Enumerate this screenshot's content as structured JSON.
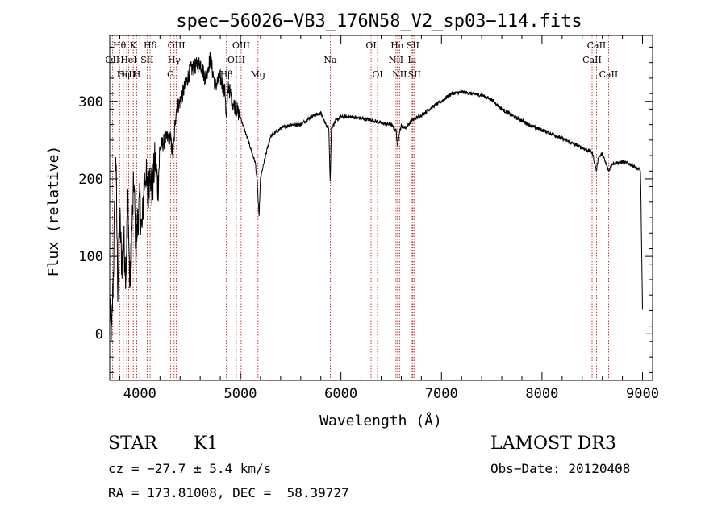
{
  "chart_data": {
    "type": "line",
    "title": "spec−56026−VB3_176N58_V2_sp03−114.fits",
    "xlabel": "Wavelength (Å)",
    "ylabel": "Flux (relative)",
    "xlim": [
      3700,
      9100
    ],
    "ylim": [
      -60,
      385
    ],
    "xticks": [
      4000,
      5000,
      6000,
      7000,
      8000,
      9000
    ],
    "yticks": [
      0,
      100,
      200,
      300
    ],
    "series": [
      {
        "name": "flux",
        "x": [
          3700,
          3720,
          3740,
          3760,
          3780,
          3800,
          3820,
          3840,
          3860,
          3880,
          3900,
          3920,
          3940,
          3960,
          3980,
          4000,
          4020,
          4040,
          4060,
          4080,
          4100,
          4120,
          4150,
          4180,
          4200,
          4250,
          4300,
          4330,
          4360,
          4400,
          4450,
          4500,
          4550,
          4600,
          4650,
          4700,
          4750,
          4800,
          4850,
          4860,
          4880,
          4920,
          4960,
          5000,
          5050,
          5100,
          5150,
          5170,
          5185,
          5200,
          5250,
          5300,
          5400,
          5500,
          5600,
          5700,
          5800,
          5850,
          5880,
          5893,
          5905,
          5950,
          6000,
          6100,
          6200,
          6300,
          6400,
          6500,
          6550,
          6563,
          6580,
          6600,
          6650,
          6700,
          6800,
          6900,
          7000,
          7100,
          7200,
          7300,
          7400,
          7500,
          7600,
          7700,
          7800,
          7900,
          8000,
          8100,
          8200,
          8300,
          8400,
          8500,
          8542,
          8560,
          8600,
          8662,
          8700,
          8800,
          8900,
          8980,
          9000
        ],
        "y": [
          30,
          0,
          100,
          240,
          60,
          150,
          90,
          120,
          80,
          180,
          60,
          130,
          200,
          110,
          150,
          170,
          130,
          190,
          210,
          170,
          220,
          180,
          225,
          190,
          240,
          250,
          255,
          230,
          290,
          300,
          320,
          340,
          345,
          350,
          330,
          355,
          320,
          330,
          310,
          275,
          320,
          300,
          290,
          280,
          260,
          240,
          220,
          190,
          150,
          200,
          230,
          255,
          265,
          270,
          270,
          280,
          285,
          270,
          265,
          195,
          265,
          275,
          280,
          280,
          278,
          276,
          272,
          270,
          262,
          240,
          260,
          268,
          266,
          275,
          282,
          292,
          300,
          310,
          312,
          310,
          308,
          302,
          290,
          282,
          275,
          268,
          263,
          258,
          252,
          246,
          240,
          234,
          210,
          228,
          232,
          210,
          220,
          222,
          218,
          210,
          30
        ]
      }
    ],
    "line_markers": [
      {
        "label": "Hθ",
        "x": 3798,
        "row": 1
      },
      {
        "label": "OII",
        "x": 3727,
        "row": 2
      },
      {
        "label": "OIII",
        "x": 3869,
        "row": 3
      },
      {
        "label": "K",
        "x": 3934,
        "row": 1
      },
      {
        "label": "HeI",
        "x": 3889,
        "row": 2
      },
      {
        "label": "Hη",
        "x": 3835,
        "row": 3
      },
      {
        "label": "SII",
        "x": 4072,
        "row": 2
      },
      {
        "label": "H",
        "x": 3969,
        "row": 3
      },
      {
        "label": "Hδ",
        "x": 4102,
        "row": 1
      },
      {
        "label": "OIII",
        "x": 4363,
        "row": 1
      },
      {
        "label": "Hγ",
        "x": 4341,
        "row": 2
      },
      {
        "label": "G",
        "x": 4305,
        "row": 3
      },
      {
        "label": "OIII",
        "x": 5007,
        "row": 1
      },
      {
        "label": "OIII",
        "x": 4959,
        "row": 2
      },
      {
        "label": "Hβ",
        "x": 4861,
        "row": 3
      },
      {
        "label": "Mg",
        "x": 5175,
        "row": 3
      },
      {
        "label": "Na",
        "x": 5894,
        "row": 2
      },
      {
        "label": "OI",
        "x": 6300,
        "row": 1
      },
      {
        "label": "OI",
        "x": 6364,
        "row": 3
      },
      {
        "label": "Hα",
        "x": 6563,
        "row": 1
      },
      {
        "label": "SII",
        "x": 6716,
        "row": 1
      },
      {
        "label": "NII",
        "x": 6548,
        "row": 2
      },
      {
        "label": "Li",
        "x": 6708,
        "row": 2
      },
      {
        "label": "NII",
        "x": 6583,
        "row": 3
      },
      {
        "label": "SII",
        "x": 6731,
        "row": 3
      },
      {
        "label": "CaII",
        "x": 8542,
        "row": 1
      },
      {
        "label": "CaII",
        "x": 8498,
        "row": 2
      },
      {
        "label": "CaII",
        "x": 8662,
        "row": 3
      }
    ]
  },
  "info": {
    "object_class": "STAR",
    "subclass": "K1",
    "survey": "LAMOST DR3",
    "cz": "cz = −27.7 ± 5.4 km/s",
    "obs_date": "Obs−Date: 20120408",
    "coords": "RA = 173.81008, DEC =  58.39727"
  }
}
